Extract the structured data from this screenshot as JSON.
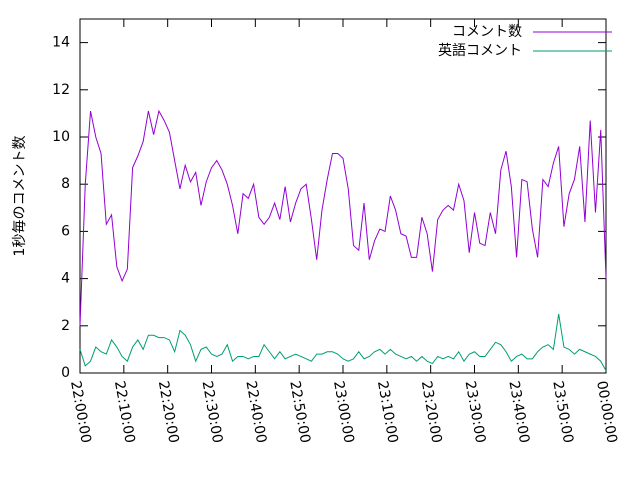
{
  "chart_data": {
    "type": "line",
    "y_label": "1秒毎のコメント数",
    "x": [
      0,
      1.2,
      2.4,
      3.6,
      4.8,
      6,
      7.2,
      8.4,
      9.6,
      10.8,
      12,
      13.2,
      14.4,
      15.6,
      16.8,
      18,
      19.2,
      20.4,
      21.6,
      22.8,
      24,
      25.2,
      26.4,
      27.6,
      28.8,
      30,
      31.2,
      32.4,
      33.6,
      34.8,
      36,
      37.2,
      38.4,
      39.6,
      40.8,
      42,
      43.2,
      44.4,
      45.6,
      46.8,
      48,
      49.2,
      50.4,
      51.6,
      52.8,
      54,
      55.2,
      56.4,
      57.6,
      58.8,
      60,
      61.2,
      62.4,
      63.6,
      64.8,
      66,
      67.2,
      68.4,
      69.6,
      70.8,
      72,
      73.2,
      74.4,
      75.6,
      76.8,
      78,
      79.2,
      80.4,
      81.6,
      82.8,
      84,
      85.2,
      86.4,
      87.6,
      88.8,
      90,
      91.2,
      92.4,
      93.6,
      94.8,
      96,
      97.2,
      98.4,
      99.6,
      100.8,
      102,
      103.2,
      104.4,
      105.6,
      106.8,
      108,
      109.2,
      110.4,
      111.6,
      112.8,
      114,
      115.2,
      116.4,
      117.6,
      118.8,
      120
    ],
    "series": [
      {
        "name": "コメント数",
        "color": "#9400d3",
        "values": [
          2.0,
          8.0,
          11.1,
          10.0,
          9.3,
          6.3,
          6.7,
          4.5,
          3.9,
          4.4,
          8.7,
          9.2,
          9.8,
          11.1,
          10.1,
          11.1,
          10.7,
          10.2,
          9.0,
          7.8,
          8.8,
          8.1,
          8.5,
          7.1,
          8.1,
          8.7,
          9.0,
          8.6,
          8.0,
          7.1,
          5.9,
          7.6,
          7.4,
          8.0,
          6.6,
          6.3,
          6.6,
          7.2,
          6.5,
          7.9,
          6.4,
          7.2,
          7.8,
          8.0,
          6.5,
          4.8,
          6.9,
          8.2,
          9.3,
          9.3,
          9.1,
          7.8,
          5.4,
          5.2,
          7.2,
          4.8,
          5.6,
          6.1,
          6.0,
          7.5,
          6.9,
          5.9,
          5.8,
          4.9,
          4.9,
          6.6,
          5.9,
          4.3,
          6.5,
          6.9,
          7.1,
          6.9,
          8.0,
          7.3,
          5.1,
          6.8,
          5.5,
          5.4,
          6.8,
          5.9,
          8.6,
          9.4,
          7.9,
          4.9,
          8.2,
          8.1,
          6.1,
          4.9,
          8.2,
          7.9,
          8.9,
          9.6,
          6.2,
          7.6,
          8.2,
          9.6,
          6.4,
          10.7,
          6.8,
          10.3,
          4.0
        ]
      },
      {
        "name": "英語コメント",
        "color": "#009e73",
        "values": [
          1.0,
          0.3,
          0.5,
          1.1,
          0.9,
          0.8,
          1.4,
          1.1,
          0.7,
          0.5,
          1.1,
          1.4,
          1.0,
          1.6,
          1.6,
          1.5,
          1.5,
          1.4,
          0.9,
          1.8,
          1.6,
          1.2,
          0.5,
          1.0,
          1.1,
          0.8,
          0.7,
          0.8,
          1.2,
          0.5,
          0.7,
          0.7,
          0.6,
          0.7,
          0.7,
          1.2,
          0.9,
          0.6,
          0.9,
          0.6,
          0.7,
          0.8,
          0.7,
          0.6,
          0.5,
          0.8,
          0.8,
          0.9,
          0.9,
          0.8,
          0.6,
          0.5,
          0.6,
          0.9,
          0.6,
          0.7,
          0.9,
          1.0,
          0.8,
          1.0,
          0.8,
          0.7,
          0.6,
          0.7,
          0.5,
          0.7,
          0.5,
          0.4,
          0.7,
          0.6,
          0.7,
          0.6,
          0.9,
          0.5,
          0.8,
          0.9,
          0.7,
          0.7,
          1.0,
          1.3,
          1.2,
          0.9,
          0.5,
          0.7,
          0.8,
          0.6,
          0.6,
          0.9,
          1.1,
          1.2,
          1.0,
          2.5,
          1.1,
          1.0,
          0.8,
          1.0,
          0.9,
          0.8,
          0.7,
          0.5,
          0.1
        ]
      }
    ],
    "xlim": [
      0,
      120
    ],
    "xticks": [
      {
        "value": 0,
        "label": "22:00:00"
      },
      {
        "value": 10,
        "label": "22:10:00"
      },
      {
        "value": 20,
        "label": "22:20:00"
      },
      {
        "value": 30,
        "label": "22:30:00"
      },
      {
        "value": 40,
        "label": "22:40:00"
      },
      {
        "value": 50,
        "label": "22:50:00"
      },
      {
        "value": 60,
        "label": "23:00:00"
      },
      {
        "value": 70,
        "label": "23:10:00"
      },
      {
        "value": 80,
        "label": "23:20:00"
      },
      {
        "value": 90,
        "label": "23:30:00"
      },
      {
        "value": 100,
        "label": "23:40:00"
      },
      {
        "value": 110,
        "label": "23:50:00"
      },
      {
        "value": 120,
        "label": "00:00:00"
      }
    ],
    "ylim": [
      0,
      15
    ],
    "yticks": [
      0,
      2,
      4,
      6,
      8,
      10,
      12,
      14
    ],
    "legend": "top-right",
    "grid": false
  }
}
